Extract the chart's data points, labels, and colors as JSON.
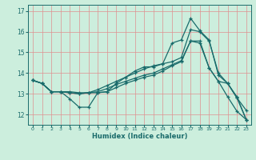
{
  "xlabel": "Humidex (Indice chaleur)",
  "ylabel": "",
  "background_color": "#cceedd",
  "grid_color": "#e09090",
  "line_color": "#1a6b6b",
  "xlim": [
    -0.5,
    23.5
  ],
  "ylim": [
    11.5,
    17.3
  ],
  "xticks": [
    0,
    1,
    2,
    3,
    4,
    5,
    6,
    7,
    8,
    9,
    10,
    11,
    12,
    13,
    14,
    15,
    16,
    17,
    18,
    19,
    20,
    21,
    22,
    23
  ],
  "yticks": [
    12,
    13,
    14,
    15,
    16,
    17
  ],
  "series": [
    {
      "x": [
        0,
        1,
        2,
        3,
        4,
        5,
        6,
        7,
        8,
        9,
        10,
        11,
        12,
        13,
        14,
        15,
        16,
        17,
        18,
        19,
        20,
        21,
        22,
        23
      ],
      "y": [
        13.65,
        13.5,
        13.1,
        13.1,
        12.75,
        12.35,
        12.35,
        13.05,
        13.1,
        13.5,
        13.8,
        14.1,
        14.3,
        14.3,
        14.45,
        15.45,
        15.6,
        16.65,
        16.05,
        15.6,
        13.9,
        13.5,
        12.8,
        12.2
      ]
    },
    {
      "x": [
        0,
        1,
        2,
        3,
        4,
        5,
        6,
        7,
        8,
        9,
        10,
        11,
        12,
        13,
        14,
        15,
        16,
        17,
        18,
        19,
        20,
        21,
        22,
        23
      ],
      "y": [
        13.65,
        13.5,
        13.1,
        13.1,
        13.1,
        13.05,
        13.05,
        13.05,
        13.1,
        13.3,
        13.5,
        13.65,
        13.8,
        13.9,
        14.1,
        14.35,
        14.55,
        15.55,
        15.45,
        14.25,
        13.6,
        12.85,
        12.15,
        11.75
      ]
    },
    {
      "x": [
        0,
        1,
        2,
        3,
        4,
        5,
        6,
        7,
        8,
        9,
        10,
        11,
        12,
        13,
        14,
        15,
        16,
        17,
        18,
        19,
        20,
        21,
        22,
        23
      ],
      "y": [
        13.65,
        13.5,
        13.1,
        13.1,
        13.05,
        13.0,
        13.05,
        13.1,
        13.25,
        13.45,
        13.6,
        13.75,
        13.9,
        14.0,
        14.2,
        14.4,
        14.6,
        15.55,
        15.55,
        14.25,
        13.6,
        13.5,
        12.8,
        11.75
      ]
    },
    {
      "x": [
        0,
        1,
        2,
        3,
        4,
        5,
        6,
        7,
        8,
        9,
        10,
        11,
        12,
        13,
        14,
        15,
        16,
        17,
        18,
        19,
        20,
        21,
        22,
        23
      ],
      "y": [
        13.65,
        13.5,
        13.1,
        13.1,
        13.05,
        13.0,
        13.05,
        13.2,
        13.4,
        13.6,
        13.8,
        14.0,
        14.2,
        14.35,
        14.45,
        14.55,
        14.75,
        16.1,
        16.0,
        15.55,
        14.0,
        13.5,
        12.85,
        11.75
      ]
    }
  ]
}
